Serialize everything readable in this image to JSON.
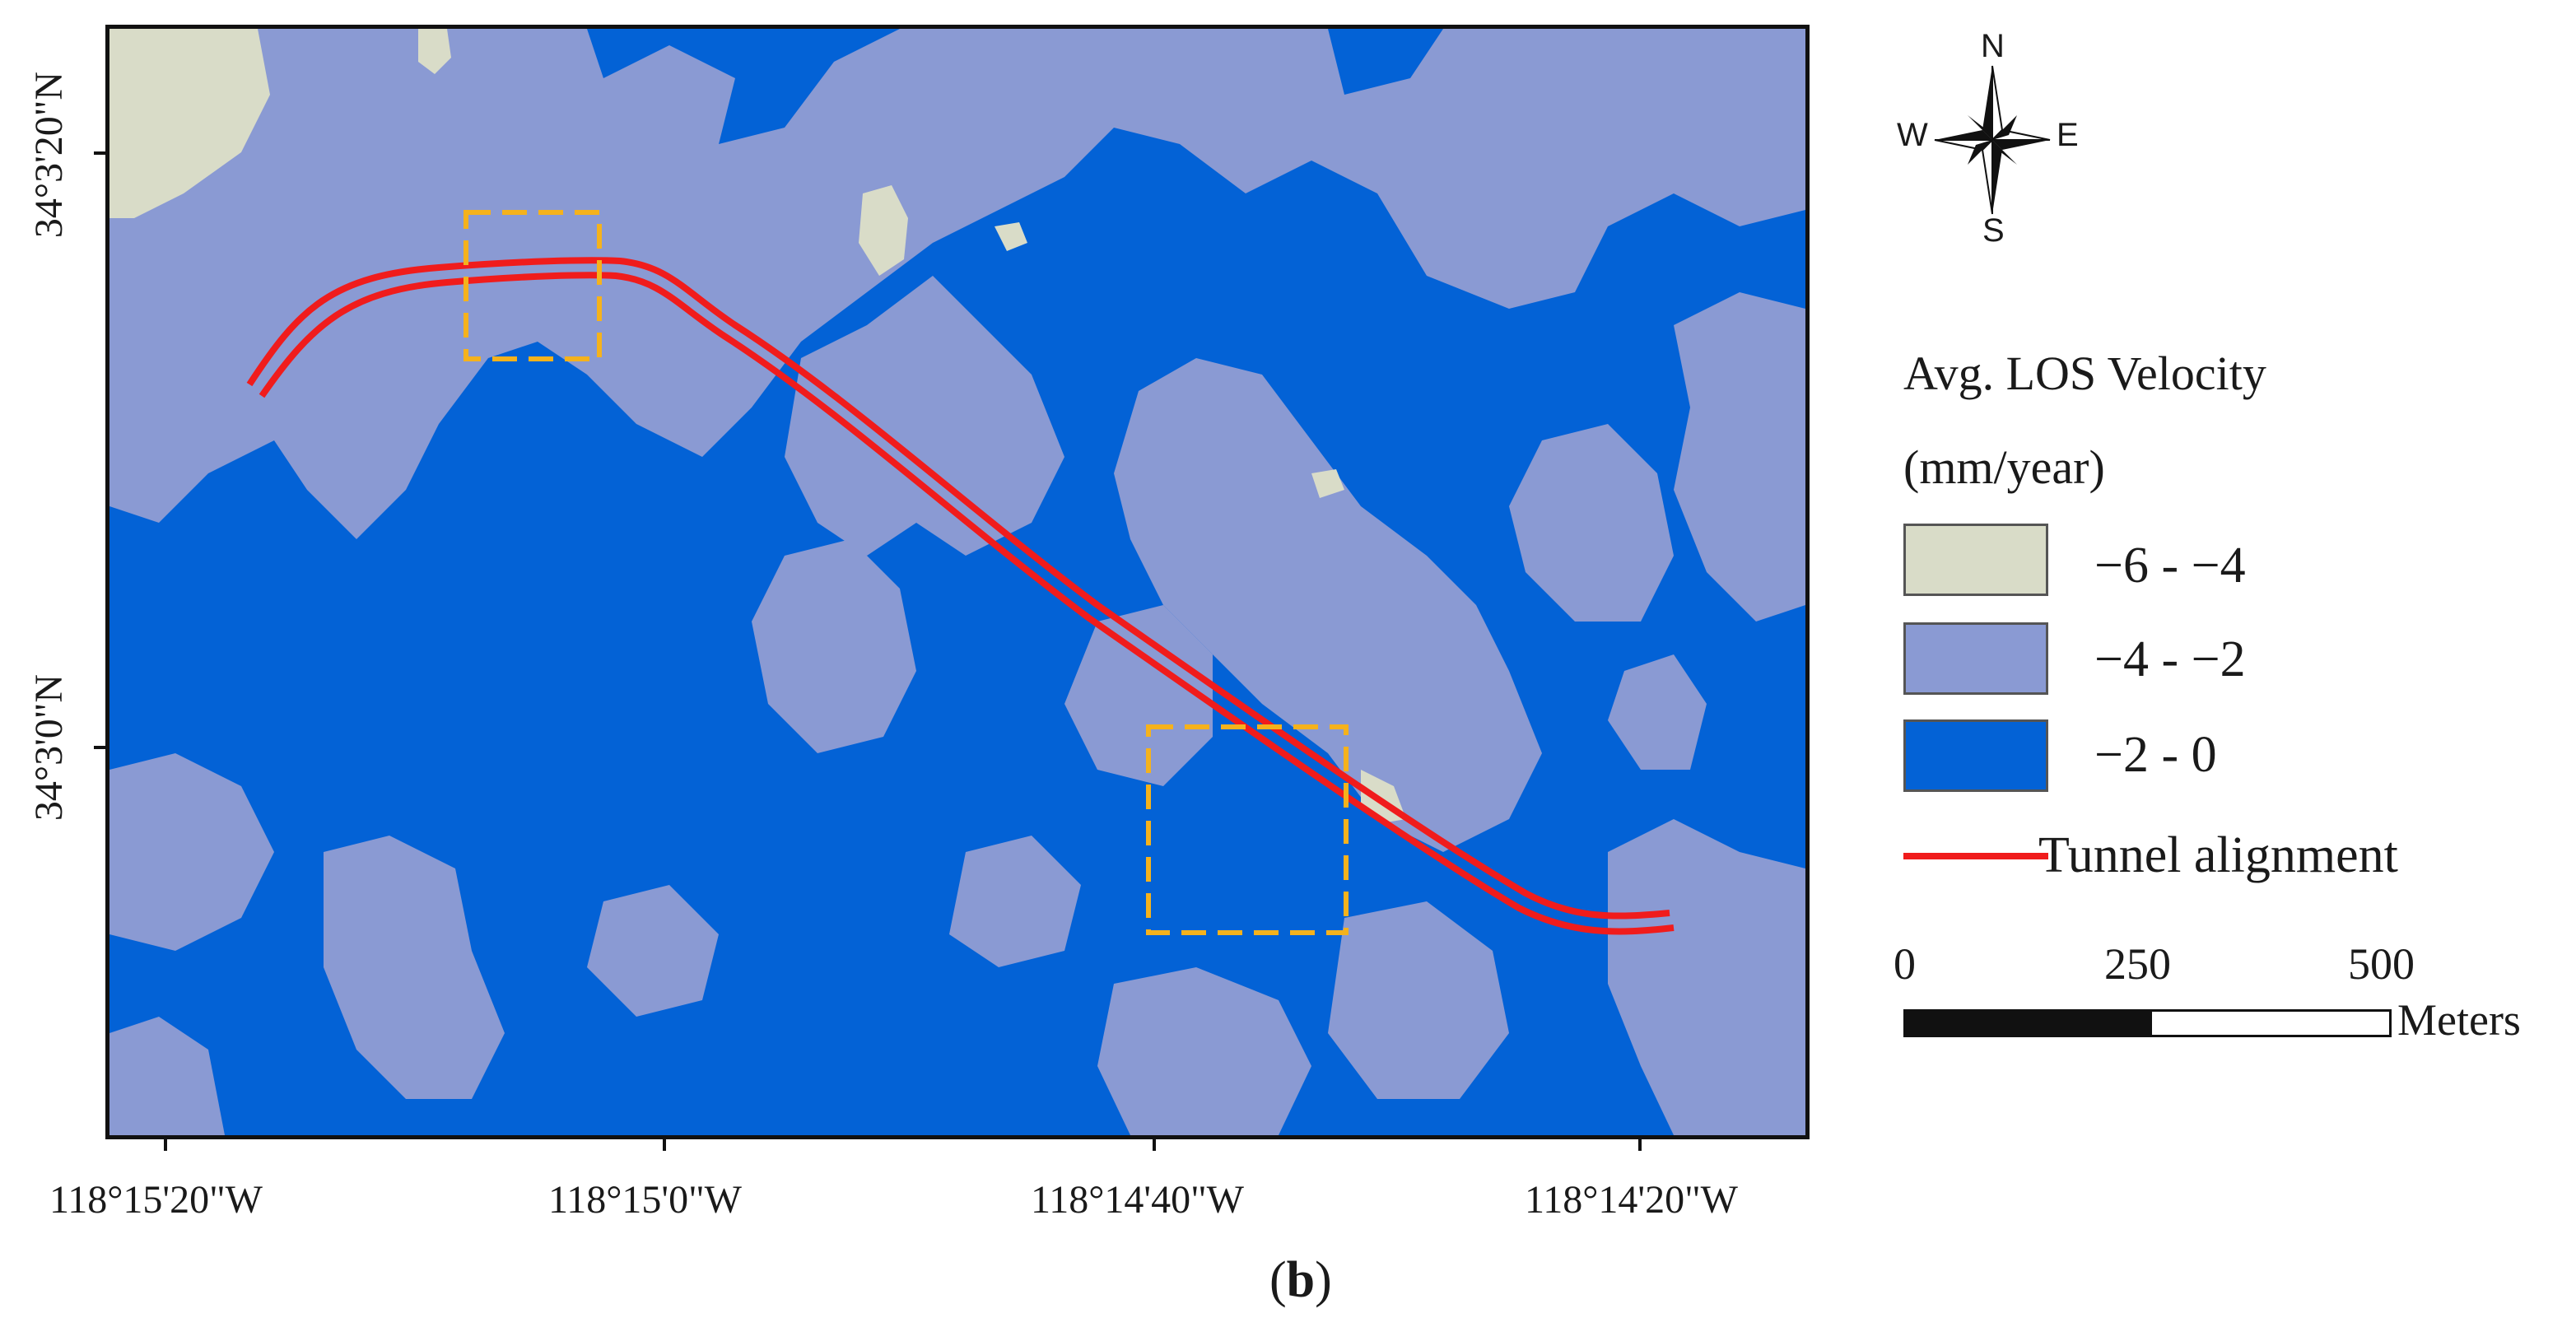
{
  "map": {
    "colors": {
      "class_high": "#d9dcc8",
      "class_mid": "#8a9ad3",
      "class_low": "#0362d6",
      "tunnel": "#f01c1c",
      "box": "#f5b21c"
    }
  },
  "axes": {
    "x_ticks": [
      "118°15'20\"W",
      "118°15'0\"W",
      "118°14'40\"W",
      "118°14'20\"W"
    ],
    "y_ticks": [
      "34°3'20\"N",
      "34°3'0\"N"
    ]
  },
  "compass": {
    "n": "N",
    "s": "S",
    "e": "E",
    "w": "W"
  },
  "legend": {
    "title_line1": "Avg. LOS Velocity",
    "title_line2": "(mm/year)",
    "items": [
      {
        "label": "−6 - −4",
        "color": "#d9dcc8"
      },
      {
        "label": "−4 - −2",
        "color": "#8a9ad3"
      },
      {
        "label": "−2 - 0",
        "color": "#0362d6"
      }
    ],
    "line_item": {
      "label": "Tunnel alignment",
      "color": "#f01c1c"
    }
  },
  "scale_bar": {
    "labels": [
      "0",
      "250",
      "500"
    ],
    "unit": "Meters"
  },
  "panel": {
    "open": "(",
    "letter": "b",
    "close": ")"
  }
}
